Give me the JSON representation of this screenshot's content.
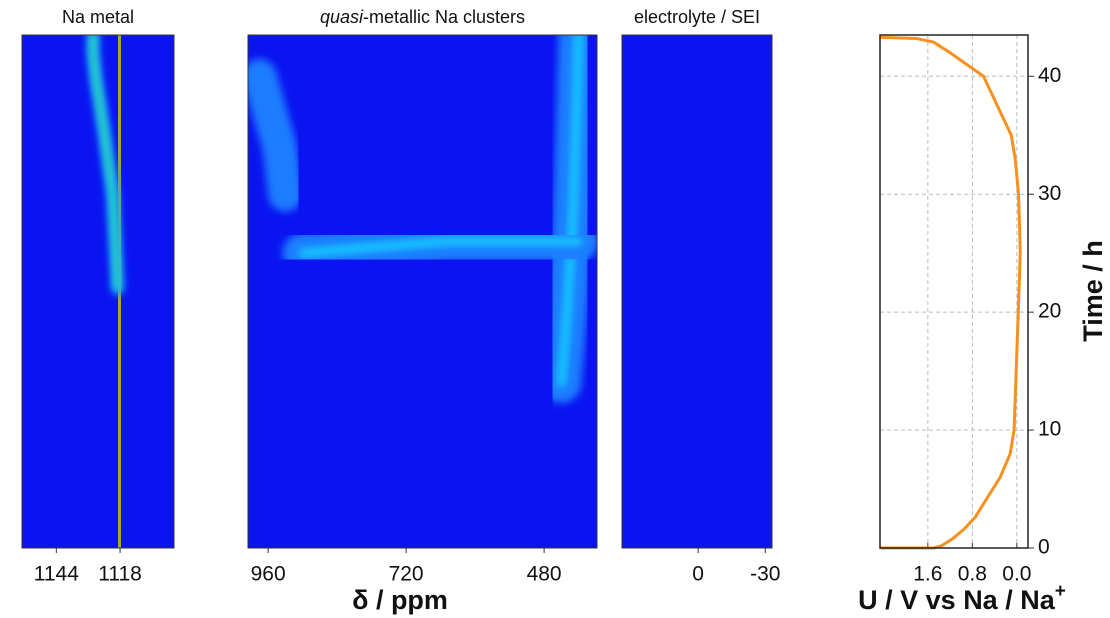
{
  "colormap": {
    "background": "#0a14f0",
    "stops": [
      {
        "level": 0.15,
        "color": "#1a7dff"
      },
      {
        "level": 0.3,
        "color": "#14d2ff"
      },
      {
        "level": 0.5,
        "color": "#3ce650"
      },
      {
        "level": 0.7,
        "color": "#e6f01e"
      },
      {
        "level": 0.85,
        "color": "#ff8c0a"
      },
      {
        "level": 1,
        "color": "#e60f0a"
      }
    ]
  },
  "chart_data": [
    {
      "type": "heatmap",
      "title": "Na metal",
      "xlim": [
        1158,
        1096
      ],
      "xticks": [
        1144,
        1118
      ],
      "ylim": [
        0,
        43.5
      ],
      "ridges": [
        {
          "x": [
            1119,
            1119,
            1119
          ],
          "y": [
            0,
            22,
            43.5
          ],
          "width": 16,
          "level": 0.3
        },
        {
          "x": [
            1118.5,
            1118,
            1118.5
          ],
          "y": [
            0,
            25,
            43.5
          ],
          "width": 4,
          "level": 1
        },
        {
          "x": [
            1119,
            1121,
            1125,
            1128,
            1129,
            1129
          ],
          "y": [
            22,
            30,
            36,
            40,
            42,
            43.5
          ],
          "width": 5,
          "level": 0.6
        }
      ]
    },
    {
      "type": "heatmap",
      "title": "quasi-metallic Na clusters",
      "italic_first_word": true,
      "x_label": "δ / ppm",
      "xlim": [
        995,
        388
      ],
      "xticks": [
        960,
        720,
        480
      ],
      "ylim": [
        0,
        43.5
      ],
      "ridges": [
        {
          "x": [
            975,
            940,
            930
          ],
          "y": [
            40,
            34,
            30
          ],
          "width": 60,
          "level": 0.2
        },
        {
          "x": [
            420,
            425,
            430,
            440,
            450
          ],
          "y": [
            43.5,
            35,
            28,
            20,
            14
          ],
          "width": 70,
          "level": 0.35
        },
        {
          "x": [
            900,
            780,
            650,
            520,
            420
          ],
          "y": [
            25,
            25.5,
            26,
            26,
            26
          ],
          "width": 70,
          "level": 0.45
        },
        {
          "x": [
            850,
            800
          ],
          "y": [
            24.8,
            24.8
          ],
          "width": 40,
          "level": 0.6
        },
        {
          "x": [
            840,
            815
          ],
          "y": [
            24.8,
            24.8
          ],
          "width": 14,
          "level": 1
        }
      ]
    },
    {
      "type": "heatmap",
      "title": "electrolyte / SEI",
      "xlim": [
        34,
        -33
      ],
      "xticks": [
        0,
        -30
      ],
      "ylim": [
        0,
        43.5
      ],
      "ridges": [
        {
          "x": [
            -14,
            -14
          ],
          "y": [
            0,
            43.5
          ],
          "width": 30,
          "level": 0.3
        },
        {
          "x": [
            -14,
            -14
          ],
          "y": [
            0,
            43.5
          ],
          "width": 8,
          "level": 1
        }
      ]
    },
    {
      "type": "line",
      "x_label": "U / V vs Na / Na",
      "x_label_superscript": "+",
      "y_label": "Time / h",
      "xlim": [
        2.46,
        -0.2
      ],
      "xticks": [
        1.6,
        0.8,
        {
          "value": 0,
          "label": "0.0"
        }
      ],
      "ylim": [
        0,
        43.5
      ],
      "yticks": [
        0,
        10,
        20,
        30,
        40
      ],
      "grid": true,
      "series": [
        {
          "color": "#f7901e",
          "x": [
            2.45,
            1.8,
            1.5,
            1.2,
            0.9,
            0.6,
            0.45,
            0.25,
            0.1,
            0.03,
            -0.03,
            -0.05,
            -0.06,
            -0.04,
            -0.01,
            0.02,
            0.05,
            0.12,
            0.3,
            0.5,
            0.75,
            0.95,
            1.15,
            1.35,
            1.5,
            2.45
          ],
          "y": [
            43.3,
            43.2,
            42.9,
            42,
            41,
            40,
            38.5,
            36.5,
            35,
            33,
            30,
            27,
            25,
            22,
            18,
            14,
            10,
            8,
            6,
            4.5,
            2.6,
            1.6,
            0.8,
            0.2,
            0,
            0
          ]
        }
      ]
    }
  ]
}
